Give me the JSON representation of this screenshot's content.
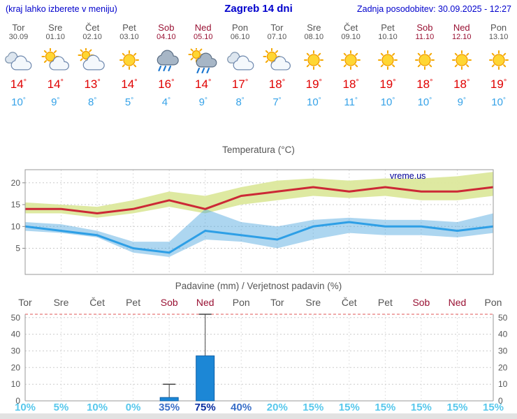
{
  "header": {
    "hint": "(kraj lahko izberete v meniju)",
    "title": "Zagreb 14 dni",
    "updated": "Zadnja posodobitev: 30.09.2025 - 12:27"
  },
  "units": {
    "degree": "°"
  },
  "colors": {
    "accent_blue": "#0000cc",
    "weekday_gray": "#555555",
    "weekend_red": "#991133",
    "temp_high": "#e00000",
    "temp_low": "#35a2e8",
    "bar_fill": "#1c87d6",
    "bar_stroke": "#0d5fa8",
    "prob_low": "#58c8ec",
    "prob_mid": "#3a6fc8",
    "prob_high": "#0a2da0",
    "watermark_blue": "#000099"
  },
  "forecast": {
    "days": [
      {
        "name": "Tor",
        "date": "30.09",
        "weekend": false,
        "icon": "cloudy",
        "high": 14,
        "low": 10
      },
      {
        "name": "Sre",
        "date": "01.10",
        "weekend": false,
        "icon": "partly",
        "high": 14,
        "low": 9
      },
      {
        "name": "Čet",
        "date": "02.10",
        "weekend": false,
        "icon": "mostly",
        "high": 13,
        "low": 8
      },
      {
        "name": "Pet",
        "date": "03.10",
        "weekend": false,
        "icon": "sunny",
        "high": 14,
        "low": 5
      },
      {
        "name": "Sob",
        "date": "04.10",
        "weekend": true,
        "icon": "rain",
        "high": 16,
        "low": 4
      },
      {
        "name": "Ned",
        "date": "05.10",
        "weekend": true,
        "icon": "rain-sun",
        "high": 14,
        "low": 9
      },
      {
        "name": "Pon",
        "date": "06.10",
        "weekend": false,
        "icon": "cloudy",
        "high": 17,
        "low": 8
      },
      {
        "name": "Tor",
        "date": "07.10",
        "weekend": false,
        "icon": "partly",
        "high": 18,
        "low": 7
      },
      {
        "name": "Sre",
        "date": "08.10",
        "weekend": false,
        "icon": "sunny",
        "high": 19,
        "low": 10
      },
      {
        "name": "Čet",
        "date": "09.10",
        "weekend": false,
        "icon": "sunny",
        "high": 18,
        "low": 11
      },
      {
        "name": "Pet",
        "date": "10.10",
        "weekend": false,
        "icon": "sunny",
        "high": 19,
        "low": 10
      },
      {
        "name": "Sob",
        "date": "11.10",
        "weekend": true,
        "icon": "sunny",
        "high": 18,
        "low": 10
      },
      {
        "name": "Ned",
        "date": "12.10",
        "weekend": true,
        "icon": "sunny",
        "high": 18,
        "low": 9
      },
      {
        "name": "Pon",
        "date": "13.10",
        "weekend": false,
        "icon": "sunny",
        "high": 19,
        "low": 10
      }
    ]
  },
  "chart_data": [
    {
      "type": "line",
      "title": "Temperatura (°C)",
      "watermark": "vreme.us",
      "categories": [
        "Tor 30.09",
        "Sre 01.10",
        "Čet 02.10",
        "Pet 03.10",
        "Sob 04.10",
        "Ned 05.10",
        "Pon 06.10",
        "Tor 07.10",
        "Sre 08.10",
        "Čet 09.10",
        "Pet 10.10",
        "Sob 11.10",
        "Ned 12.10",
        "Pon 13.10"
      ],
      "ylim": [
        -1,
        23
      ],
      "yticks": [
        5,
        10,
        15,
        20
      ],
      "grid": true,
      "series": [
        {
          "name": "max",
          "color": "#cc2936",
          "values": [
            14,
            14,
            13,
            14,
            16,
            14,
            17,
            18,
            19,
            18,
            19,
            18,
            18,
            19
          ]
        },
        {
          "name": "min",
          "color": "#2e9fe6",
          "values": [
            10,
            9,
            8,
            5,
            4,
            9,
            8,
            7,
            10,
            11,
            10,
            10,
            9,
            10
          ]
        },
        {
          "name": "max_range_upper",
          "color": "#dce89c",
          "values": [
            15.5,
            15,
            14.5,
            16,
            18,
            17,
            19,
            20.5,
            21,
            20.5,
            21,
            21,
            21.5,
            22.5
          ]
        },
        {
          "name": "max_range_lower",
          "color": "#dce89c",
          "values": [
            13,
            13,
            12,
            13,
            14.5,
            13,
            15,
            16,
            17,
            16.5,
            17,
            16,
            16,
            17
          ]
        },
        {
          "name": "min_range_upper",
          "color": "#a5d5ee",
          "values": [
            11,
            10.5,
            9,
            6.5,
            6.5,
            14,
            11,
            10,
            11.5,
            12,
            11.5,
            11.5,
            11,
            13
          ]
        },
        {
          "name": "min_range_lower",
          "color": "#a5d5ee",
          "values": [
            9,
            8.5,
            7.5,
            4,
            3,
            7,
            6.5,
            5,
            7,
            8.5,
            8,
            8,
            7.5,
            8.5
          ]
        }
      ]
    },
    {
      "type": "bar",
      "title": "Padavine (mm) / Verjetnost padavin (%)",
      "categories": [
        "Tor",
        "Sre",
        "Čet",
        "Pet",
        "Sob",
        "Ned",
        "Pon",
        "Tor",
        "Sre",
        "Čet",
        "Pet",
        "Sob",
        "Ned",
        "Pon"
      ],
      "weekend": [
        false,
        false,
        false,
        false,
        true,
        true,
        false,
        false,
        false,
        false,
        false,
        true,
        true,
        false
      ],
      "values": [
        0,
        0,
        0,
        0,
        2,
        27,
        0,
        0,
        0,
        0,
        0,
        0,
        0,
        0
      ],
      "whisker_max": [
        0,
        0,
        0,
        0,
        10,
        52,
        0,
        0,
        0,
        0,
        0,
        0,
        0,
        0
      ],
      "probabilities": [
        "10%",
        "5%",
        "10%",
        "0%",
        "35%",
        "75%",
        "40%",
        "20%",
        "15%",
        "15%",
        "15%",
        "15%",
        "15%",
        "15%"
      ],
      "ylim": [
        0,
        52
      ],
      "yticks": [
        0,
        10,
        20,
        30,
        40,
        50
      ],
      "grid": true
    }
  ]
}
